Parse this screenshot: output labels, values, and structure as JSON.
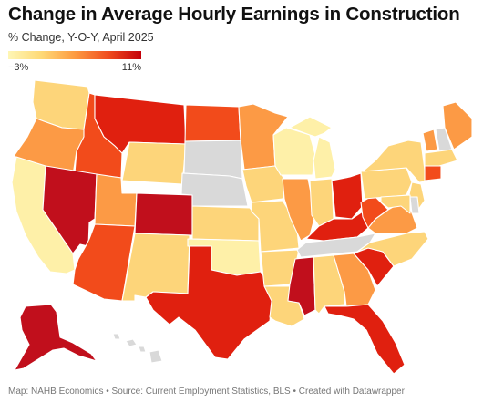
{
  "title": "Change in Average Hourly Earnings in Construction",
  "subtitle": "% Change, Y-O-Y, April 2025",
  "legend": {
    "min_label": "−3%",
    "max_label": "11%",
    "min_value": -3,
    "max_value": 11,
    "colors": [
      "#fef6b5",
      "#fed976",
      "#fd9b41",
      "#f04e1f",
      "#c4000a"
    ]
  },
  "footer": "Map: NAHB Economics • Source: Current Employment Statistics, BLS • Created with Datawrapper",
  "no_data_color": "#d9d9d9",
  "states": [
    {
      "abbr": "WA",
      "level": 1
    },
    {
      "abbr": "OR",
      "level": 2
    },
    {
      "abbr": "CA",
      "level": 0
    },
    {
      "abbr": "ID",
      "level": 3
    },
    {
      "abbr": "NV",
      "level": 5
    },
    {
      "abbr": "MT",
      "level": 4
    },
    {
      "abbr": "WY",
      "level": 1
    },
    {
      "abbr": "UT",
      "level": 2
    },
    {
      "abbr": "AZ",
      "level": 3
    },
    {
      "abbr": "CO",
      "level": 5
    },
    {
      "abbr": "NM",
      "level": 1
    },
    {
      "abbr": "ND",
      "level": 3
    },
    {
      "abbr": "SD",
      "level": null
    },
    {
      "abbr": "NE",
      "level": null
    },
    {
      "abbr": "KS",
      "level": 1
    },
    {
      "abbr": "OK",
      "level": 0
    },
    {
      "abbr": "TX",
      "level": 4
    },
    {
      "abbr": "MN",
      "level": 2
    },
    {
      "abbr": "IA",
      "level": 1
    },
    {
      "abbr": "MO",
      "level": 1
    },
    {
      "abbr": "AR",
      "level": 1
    },
    {
      "abbr": "LA",
      "level": 1
    },
    {
      "abbr": "WI",
      "level": 0
    },
    {
      "abbr": "IL",
      "level": 2
    },
    {
      "abbr": "MI",
      "level": 0
    },
    {
      "abbr": "IN",
      "level": 1
    },
    {
      "abbr": "OH",
      "level": 4
    },
    {
      "abbr": "KY",
      "level": 4
    },
    {
      "abbr": "TN",
      "level": null
    },
    {
      "abbr": "MS",
      "level": 5
    },
    {
      "abbr": "AL",
      "level": 1
    },
    {
      "abbr": "GA",
      "level": 2
    },
    {
      "abbr": "FL",
      "level": 4
    },
    {
      "abbr": "SC",
      "level": 4
    },
    {
      "abbr": "NC",
      "level": 1
    },
    {
      "abbr": "VA",
      "level": 2
    },
    {
      "abbr": "WV",
      "level": 3
    },
    {
      "abbr": "PA",
      "level": 1
    },
    {
      "abbr": "NY",
      "level": 1
    },
    {
      "abbr": "VT",
      "level": 2
    },
    {
      "abbr": "NH",
      "level": null
    },
    {
      "abbr": "ME",
      "level": 2
    },
    {
      "abbr": "MA",
      "level": 1
    },
    {
      "abbr": "CT",
      "level": 3
    },
    {
      "abbr": "NJ",
      "level": 1
    },
    {
      "abbr": "DE",
      "level": null
    },
    {
      "abbr": "MD",
      "level": 1
    },
    {
      "abbr": "AK",
      "level": 5
    },
    {
      "abbr": "HI",
      "level": null
    }
  ]
}
